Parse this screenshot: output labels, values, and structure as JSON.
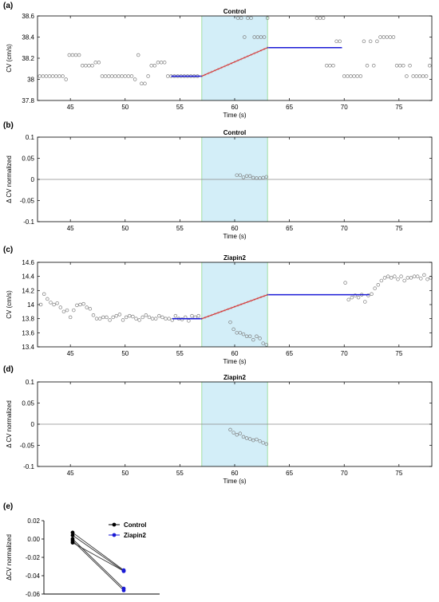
{
  "chart_data": [
    {
      "panel": "(a)",
      "type": "scatter",
      "title": "Control",
      "xlabel": "Time (s)",
      "ylabel": "CV (cm/s)",
      "xlim": [
        42,
        78
      ],
      "ylim": [
        37.8,
        38.6
      ],
      "xticks": [
        45,
        50,
        55,
        60,
        65,
        70,
        75
      ],
      "yticks": [
        37.8,
        38,
        38.2,
        38.4,
        38.6
      ],
      "shade": [
        57,
        63
      ],
      "points": [
        [
          42.2,
          38.03
        ],
        [
          42.5,
          38.03
        ],
        [
          42.8,
          38.03
        ],
        [
          43.1,
          38.03
        ],
        [
          43.4,
          38.03
        ],
        [
          43.7,
          38.03
        ],
        [
          44,
          38.03
        ],
        [
          44.3,
          38.03
        ],
        [
          44.6,
          38.0
        ],
        [
          44.9,
          38.23
        ],
        [
          45.2,
          38.23
        ],
        [
          45.5,
          38.23
        ],
        [
          45.8,
          38.23
        ],
        [
          46.1,
          38.13
        ],
        [
          46.4,
          38.13
        ],
        [
          46.7,
          38.13
        ],
        [
          47,
          38.13
        ],
        [
          47.3,
          38.16
        ],
        [
          47.6,
          38.16
        ],
        [
          47.9,
          38.03
        ],
        [
          48.2,
          38.03
        ],
        [
          48.5,
          38.03
        ],
        [
          48.8,
          38.03
        ],
        [
          49.1,
          38.03
        ],
        [
          49.4,
          38.03
        ],
        [
          49.7,
          38.03
        ],
        [
          50,
          38.03
        ],
        [
          50.3,
          38.03
        ],
        [
          50.6,
          38.03
        ],
        [
          50.9,
          38.0
        ],
        [
          51.2,
          38.23
        ],
        [
          51.5,
          37.96
        ],
        [
          51.8,
          37.96
        ],
        [
          52.1,
          38.03
        ],
        [
          52.4,
          38.13
        ],
        [
          52.7,
          38.13
        ],
        [
          53,
          38.16
        ],
        [
          53.3,
          38.16
        ],
        [
          53.6,
          38.16
        ],
        [
          53.9,
          38.03
        ],
        [
          54.2,
          38.03
        ],
        [
          54.5,
          38.03
        ],
        [
          54.8,
          38.03
        ],
        [
          55.1,
          38.03
        ],
        [
          55.4,
          38.03
        ],
        [
          55.7,
          38.03
        ],
        [
          56,
          38.03
        ],
        [
          56.3,
          38.03
        ],
        [
          56.6,
          38.03
        ],
        [
          60.3,
          38.58
        ],
        [
          60.6,
          38.58
        ],
        [
          60.9,
          38.4
        ],
        [
          61.2,
          38.58
        ],
        [
          61.5,
          38.58
        ],
        [
          61.8,
          38.4
        ],
        [
          62.1,
          38.4
        ],
        [
          62.4,
          38.4
        ],
        [
          62.7,
          38.4
        ],
        [
          63,
          38.58
        ],
        [
          67.5,
          38.58
        ],
        [
          67.8,
          38.58
        ],
        [
          68.1,
          38.58
        ],
        [
          68.4,
          38.13
        ],
        [
          68.7,
          38.13
        ],
        [
          69,
          38.13
        ],
        [
          69.3,
          38.36
        ],
        [
          69.6,
          38.36
        ],
        [
          70,
          38.03
        ],
        [
          70.3,
          38.03
        ],
        [
          70.6,
          38.03
        ],
        [
          70.9,
          38.03
        ],
        [
          71.2,
          38.03
        ],
        [
          71.5,
          38.03
        ],
        [
          71.8,
          38.36
        ],
        [
          72.1,
          38.13
        ],
        [
          72.4,
          38.36
        ],
        [
          72.7,
          38.13
        ],
        [
          73,
          38.36
        ],
        [
          73.3,
          38.4
        ],
        [
          73.6,
          38.4
        ],
        [
          73.9,
          38.4
        ],
        [
          74.2,
          38.4
        ],
        [
          74.5,
          38.4
        ],
        [
          74.8,
          38.13
        ],
        [
          75.1,
          38.13
        ],
        [
          75.4,
          38.13
        ],
        [
          75.7,
          38.03
        ],
        [
          76,
          38.13
        ],
        [
          76.3,
          38.03
        ],
        [
          76.6,
          38.03
        ],
        [
          76.9,
          38.03
        ],
        [
          77.2,
          38.03
        ],
        [
          77.5,
          38.03
        ],
        [
          77.8,
          38.13
        ]
      ],
      "fit_lines": [
        {
          "color": "#1a1ad6",
          "x": [
            54.2,
            57
          ],
          "y": [
            38.03,
            38.03
          ]
        },
        {
          "color": "#d82020",
          "x": [
            57,
            63
          ],
          "y": [
            38.03,
            38.3
          ]
        },
        {
          "color": "#1a1ad6",
          "x": [
            63,
            69.8
          ],
          "y": [
            38.3,
            38.3
          ]
        }
      ],
      "zero_line": false
    },
    {
      "panel": "(b)",
      "type": "scatter",
      "title": "Control",
      "xlabel": "Time (s)",
      "ylabel": "Δ CV normalized",
      "xlim": [
        42,
        78
      ],
      "ylim": [
        -0.1,
        0.1
      ],
      "xticks": [
        45,
        50,
        55,
        60,
        65,
        70,
        75
      ],
      "yticks": [
        -0.1,
        -0.05,
        0,
        0.05,
        0.1
      ],
      "shade": [
        57,
        63
      ],
      "points": [
        [
          60.2,
          0.01
        ],
        [
          60.5,
          0.01
        ],
        [
          60.8,
          0.005
        ],
        [
          61.1,
          0.008
        ],
        [
          61.4,
          0.008
        ],
        [
          61.7,
          0.004
        ],
        [
          62,
          0.003
        ],
        [
          62.3,
          0.003
        ],
        [
          62.6,
          0.004
        ],
        [
          62.9,
          0.006
        ]
      ],
      "fit_lines": [],
      "zero_line": true
    },
    {
      "panel": "(c)",
      "type": "scatter",
      "title": "Ziapin2",
      "xlabel": "Time (s)",
      "ylabel": "CV (cm/s)",
      "xlim": [
        42,
        78
      ],
      "ylim": [
        13.4,
        14.6
      ],
      "xticks": [
        45,
        50,
        55,
        60,
        65,
        70,
        75
      ],
      "yticks": [
        13.4,
        13.6,
        13.8,
        14,
        14.2,
        14.4,
        14.6
      ],
      "shade": [
        57,
        63
      ],
      "points": [
        [
          42.3,
          14.0
        ],
        [
          42.6,
          14.15
        ],
        [
          42.9,
          14.08
        ],
        [
          43.2,
          14.03
        ],
        [
          43.5,
          14.0
        ],
        [
          43.8,
          14.02
        ],
        [
          44.1,
          13.96
        ],
        [
          44.4,
          13.9
        ],
        [
          44.7,
          13.92
        ],
        [
          45,
          13.82
        ],
        [
          45.3,
          13.92
        ],
        [
          45.6,
          13.99
        ],
        [
          45.9,
          14.0
        ],
        [
          46.2,
          14.01
        ],
        [
          46.5,
          13.96
        ],
        [
          46.8,
          13.94
        ],
        [
          47.1,
          13.85
        ],
        [
          47.4,
          13.8
        ],
        [
          47.7,
          13.8
        ],
        [
          48,
          13.82
        ],
        [
          48.3,
          13.82
        ],
        [
          48.6,
          13.78
        ],
        [
          48.9,
          13.82
        ],
        [
          49.2,
          13.84
        ],
        [
          49.5,
          13.86
        ],
        [
          49.8,
          13.78
        ],
        [
          50.1,
          13.82
        ],
        [
          50.4,
          13.84
        ],
        [
          50.7,
          13.83
        ],
        [
          51,
          13.8
        ],
        [
          51.3,
          13.78
        ],
        [
          51.6,
          13.82
        ],
        [
          51.9,
          13.85
        ],
        [
          52.2,
          13.82
        ],
        [
          52.5,
          13.8
        ],
        [
          52.8,
          13.8
        ],
        [
          53.1,
          13.84
        ],
        [
          53.4,
          13.82
        ],
        [
          53.7,
          13.8
        ],
        [
          54,
          13.8
        ],
        [
          54.3,
          13.78
        ],
        [
          54.6,
          13.84
        ],
        [
          54.9,
          13.8
        ],
        [
          55.2,
          13.79
        ],
        [
          55.5,
          13.82
        ],
        [
          55.8,
          13.77
        ],
        [
          56.1,
          13.84
        ],
        [
          56.4,
          13.82
        ],
        [
          56.7,
          13.84
        ],
        [
          59.6,
          13.75
        ],
        [
          59.9,
          13.65
        ],
        [
          60.2,
          13.6
        ],
        [
          60.5,
          13.6
        ],
        [
          60.8,
          13.58
        ],
        [
          61.1,
          13.55
        ],
        [
          61.4,
          13.55
        ],
        [
          61.7,
          13.5
        ],
        [
          62,
          13.55
        ],
        [
          62.3,
          13.52
        ],
        [
          62.6,
          13.45
        ],
        [
          62.9,
          13.43
        ],
        [
          70.1,
          14.31
        ],
        [
          70.4,
          14.07
        ],
        [
          70.7,
          14.1
        ],
        [
          71,
          14.13
        ],
        [
          71.3,
          14.1
        ],
        [
          71.6,
          14.14
        ],
        [
          71.9,
          14.04
        ],
        [
          72.2,
          14.13
        ],
        [
          72.5,
          14.15
        ],
        [
          72.8,
          14.23
        ],
        [
          73.1,
          14.28
        ],
        [
          73.4,
          14.34
        ],
        [
          73.7,
          14.38
        ],
        [
          74,
          14.4
        ],
        [
          74.3,
          14.38
        ],
        [
          74.6,
          14.4
        ],
        [
          74.9,
          14.36
        ],
        [
          75.2,
          14.4
        ],
        [
          75.5,
          14.34
        ],
        [
          75.8,
          14.38
        ],
        [
          76.1,
          14.38
        ],
        [
          76.4,
          14.4
        ],
        [
          76.7,
          14.4
        ],
        [
          77,
          14.37
        ],
        [
          77.3,
          14.42
        ],
        [
          77.6,
          14.36
        ],
        [
          77.9,
          14.38
        ]
      ],
      "fit_lines": [
        {
          "color": "#1a1ad6",
          "x": [
            54.3,
            57
          ],
          "y": [
            13.8,
            13.8
          ]
        },
        {
          "color": "#d82020",
          "x": [
            57,
            63
          ],
          "y": [
            13.8,
            14.14
          ]
        },
        {
          "color": "#1a1ad6",
          "x": [
            63,
            72.3
          ],
          "y": [
            14.14,
            14.14
          ]
        }
      ],
      "zero_line": false
    },
    {
      "panel": "(d)",
      "type": "scatter",
      "title": "Ziapin2",
      "xlabel": "Time (s)",
      "ylabel": "Δ CV normalized",
      "xlim": [
        42,
        78
      ],
      "ylim": [
        -0.1,
        0.1
      ],
      "xticks": [
        45,
        50,
        55,
        60,
        65,
        70,
        75
      ],
      "yticks": [
        -0.1,
        -0.05,
        0,
        0.05,
        0.1
      ],
      "shade": [
        57,
        63
      ],
      "points": [
        [
          59.6,
          -0.013
        ],
        [
          59.9,
          -0.02
        ],
        [
          60.2,
          -0.025
        ],
        [
          60.5,
          -0.022
        ],
        [
          60.8,
          -0.03
        ],
        [
          61.1,
          -0.033
        ],
        [
          61.4,
          -0.035
        ],
        [
          61.7,
          -0.038
        ],
        [
          62,
          -0.036
        ],
        [
          62.3,
          -0.04
        ],
        [
          62.6,
          -0.044
        ],
        [
          62.9,
          -0.047
        ]
      ],
      "fit_lines": [],
      "zero_line": true
    },
    {
      "panel": "(e)",
      "type": "line",
      "title": "",
      "xlabel": "",
      "ylabel": "ΔCV normalized",
      "ylim": [
        -0.06,
        0.02
      ],
      "yticks": [
        -0.06,
        -0.04,
        -0.02,
        0.0,
        0.02
      ],
      "categories": [
        "Control",
        "Ziapin2"
      ],
      "legend": {
        "placement": "top-right",
        "entries": [
          "Control",
          "Ziapin2"
        ]
      },
      "pairs": [
        [
          0.007,
          -0.034
        ],
        [
          0.004,
          -0.035
        ],
        [
          0.0,
          -0.054
        ],
        [
          -0.002,
          -0.056
        ],
        [
          -0.004,
          -0.035
        ]
      ],
      "series_colors": {
        "Control": "#000000",
        "Ziapin2": "#1a1ad6"
      }
    }
  ],
  "colors": {
    "shade": "#d3eef8",
    "shade_edge": "#8ed88e",
    "marker": "#808080",
    "axis": "#000000"
  }
}
